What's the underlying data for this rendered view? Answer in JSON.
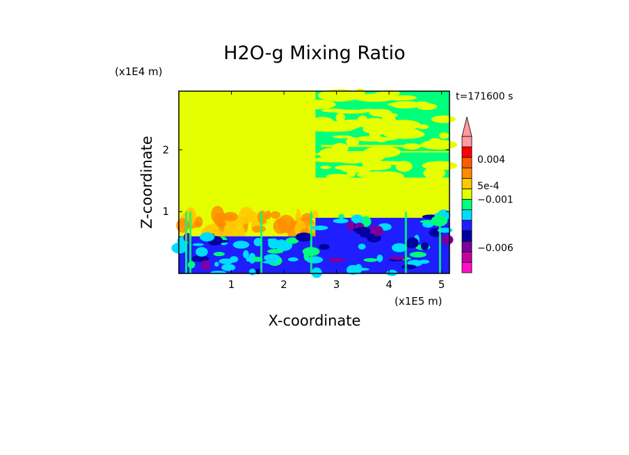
{
  "chart_data": {
    "type": "heatmap",
    "title": "H2O-g Mixing Ratio",
    "xlabel": "X-coordinate",
    "ylabel": "Z-coordinate",
    "x_scale_label": "(x1E5 m)",
    "y_scale_label": "(x1E4 m)",
    "time_label": "t=171600 s",
    "xlim": [
      0,
      5.15
    ],
    "ylim": [
      0,
      2.95
    ],
    "x_ticks": [
      {
        "value": 1,
        "label": "1"
      },
      {
        "value": 2,
        "label": "2"
      },
      {
        "value": 3,
        "label": "3"
      },
      {
        "value": 4,
        "label": "4"
      },
      {
        "value": 5,
        "label": "5"
      }
    ],
    "y_ticks": [
      {
        "value": 1,
        "label": "1"
      },
      {
        "value": 2,
        "label": "2"
      }
    ],
    "colorbar": {
      "colors": [
        "#ff10c8",
        "#c800a0",
        "#7c00a0",
        "#0000a0",
        "#1e1eff",
        "#00dcff",
        "#00ff7a",
        "#e6ff00",
        "#ffc800",
        "#ff8c00",
        "#ff5a00",
        "#ff0000",
        "#ff9aa0"
      ],
      "extend_max": true,
      "labels": [
        {
          "value": "0.004",
          "index": 10.8
        },
        {
          "value": "5e-4",
          "index": 8.3
        },
        {
          "value": "−0.001",
          "index": 7.0
        },
        {
          "value": "−0.006",
          "index": 2.4
        }
      ]
    }
  }
}
